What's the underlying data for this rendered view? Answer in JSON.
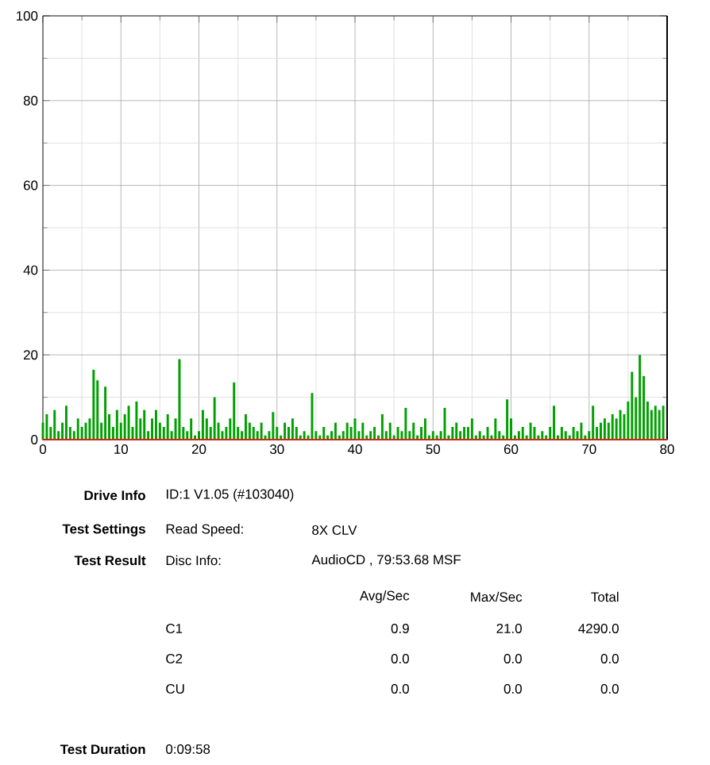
{
  "chart_data": {
    "type": "bar",
    "xlim": [
      0,
      80
    ],
    "ylim": [
      0,
      100
    ],
    "xticks": [
      0,
      10,
      20,
      30,
      40,
      50,
      60,
      70,
      80
    ],
    "yticks": [
      0,
      20,
      40,
      60,
      80,
      100
    ],
    "grid": true,
    "series": [
      {
        "color": "#00a000",
        "x": [
          0,
          0.5,
          1,
          1.5,
          2,
          2.5,
          3,
          3.5,
          4,
          4.5,
          5,
          5.5,
          6,
          6.5,
          7,
          7.5,
          8,
          8.5,
          9,
          9.5,
          10,
          10.5,
          11,
          11.5,
          12,
          12.5,
          13,
          13.5,
          14,
          14.5,
          15,
          15.5,
          16,
          16.5,
          17,
          17.5,
          18,
          18.5,
          19,
          19.5,
          20,
          20.5,
          21,
          21.5,
          22,
          22.5,
          23,
          23.5,
          24,
          24.5,
          25,
          25.5,
          26,
          26.5,
          27,
          27.5,
          28,
          28.5,
          29,
          29.5,
          30,
          30.5,
          31,
          31.5,
          32,
          32.5,
          33,
          33.5,
          34,
          34.5,
          35,
          35.5,
          36,
          36.5,
          37,
          37.5,
          38,
          38.5,
          39,
          39.5,
          40,
          40.5,
          41,
          41.5,
          42,
          42.5,
          43,
          43.5,
          44,
          44.5,
          45,
          45.5,
          46,
          46.5,
          47,
          47.5,
          48,
          48.5,
          49,
          49.5,
          50,
          50.5,
          51,
          51.5,
          52,
          52.5,
          53,
          53.5,
          54,
          54.5,
          55,
          55.5,
          56,
          56.5,
          57,
          57.5,
          58,
          58.5,
          59,
          59.5,
          60,
          60.5,
          61,
          61.5,
          62,
          62.5,
          63,
          63.5,
          64,
          64.5,
          65,
          65.5,
          66,
          66.5,
          67,
          67.5,
          68,
          68.5,
          69,
          69.5,
          70,
          70.5,
          71,
          71.5,
          72,
          72.5,
          73,
          73.5,
          74,
          74.5,
          75,
          75.5,
          76,
          76.5,
          77,
          77.5,
          78,
          78.5,
          79,
          79.5
        ],
        "values": [
          4,
          6,
          3,
          7,
          2,
          4,
          8,
          3,
          2,
          5,
          3,
          4,
          5,
          16.5,
          14,
          4,
          12.5,
          6,
          3,
          7,
          4,
          6,
          8,
          3,
          9,
          5,
          7,
          2,
          5,
          7,
          4,
          3,
          6,
          2,
          5,
          19,
          3,
          2,
          5,
          1,
          2,
          7,
          5,
          3,
          10,
          4,
          2,
          3,
          5,
          13.5,
          3,
          2,
          6,
          4,
          3,
          2,
          4,
          1,
          2,
          6.5,
          3,
          1,
          4,
          3,
          5,
          3,
          1,
          2,
          1,
          11,
          2,
          1,
          3,
          1,
          2,
          4,
          1,
          2,
          4,
          3,
          5,
          2,
          4,
          1,
          2,
          3,
          1,
          6,
          2,
          4,
          1,
          3,
          2,
          7.5,
          2,
          4,
          1,
          3,
          5,
          1,
          2,
          1,
          2,
          7.5,
          1,
          3,
          4,
          2,
          3,
          3,
          5,
          1,
          2,
          1,
          3,
          1,
          5,
          2,
          1,
          9.5,
          5,
          1,
          2,
          3,
          1,
          4,
          3,
          1,
          2,
          1,
          3,
          8,
          1,
          3,
          2,
          1,
          3,
          2,
          4,
          1,
          2,
          8,
          3,
          4,
          5,
          4,
          6,
          5,
          7,
          6,
          9,
          16,
          10,
          20,
          15,
          9,
          7,
          8,
          7,
          8
        ]
      },
      {
        "type": "line",
        "color": "#ff0000",
        "x": [
          0,
          80
        ],
        "values": [
          0,
          0
        ]
      }
    ],
    "ref_lines": [
      {
        "axis": "x",
        "value": 80,
        "color": "#000000"
      }
    ],
    "annotations": [
      "Drive Info",
      "ID:1 V1.05 (#103040)",
      "Test Settings",
      "Read Speed:",
      "8X CLV",
      "Test Result",
      "Disc Info:",
      "AudioCD , 79:53.68 MSF",
      "Avg/Sec",
      "Max/Sec",
      "Total",
      "C1",
      "0.9",
      "21.0",
      "4290.0",
      "C2",
      "0.0",
      "0.0",
      "0.0",
      "CU",
      "0.0",
      "0.0",
      "0.0",
      "Test Duration",
      "0:09:58"
    ]
  }
}
